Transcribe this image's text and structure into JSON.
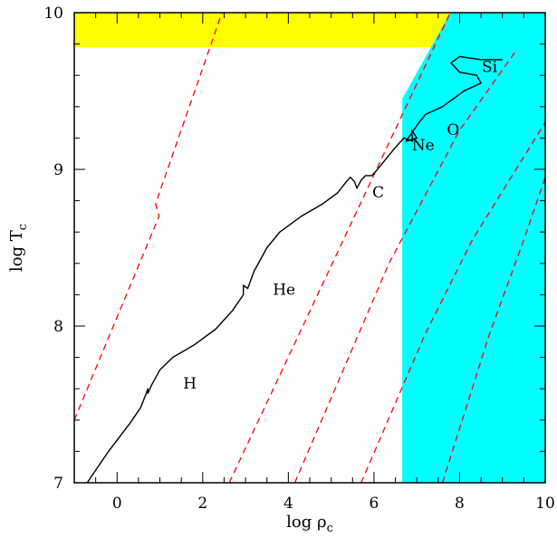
{
  "chart_data": {
    "type": "line",
    "xlabel": "log ρ",
    "xlabel_sub": "c",
    "ylabel": "log T",
    "ylabel_sub": "c",
    "xlim": [
      -1,
      10
    ],
    "ylim": [
      7,
      10
    ],
    "xticks": [
      0,
      2,
      4,
      6,
      8,
      10
    ],
    "yticks": [
      7,
      8,
      9,
      10
    ],
    "colors": {
      "track": "#000000",
      "dashed": "#ff0000",
      "yellow_region": "#ffff00",
      "cyan_region": "#00ffff"
    },
    "regions": [
      {
        "name": "yellow",
        "polygon": [
          [
            -1,
            9.78
          ],
          [
            7.6,
            9.78
          ],
          [
            7.78,
            10
          ],
          [
            -1,
            10
          ]
        ]
      },
      {
        "name": "cyan",
        "polygon": [
          [
            6.66,
            7
          ],
          [
            10,
            7
          ],
          [
            10,
            10
          ],
          [
            7.78,
            10
          ],
          [
            6.66,
            9.45
          ]
        ]
      }
    ],
    "dashed_lines": [
      {
        "points": [
          [
            -1,
            7.4
          ],
          [
            0.98,
            8.7
          ],
          [
            0.9,
            8.78
          ],
          [
            2.45,
            10
          ]
        ]
      },
      {
        "points": [
          [
            2.62,
            7
          ],
          [
            7.78,
            10
          ]
        ]
      },
      {
        "points": [
          [
            4.15,
            7
          ],
          [
            6.35,
            8.4
          ],
          [
            8.0,
            9.25
          ],
          [
            9.3,
            9.75
          ]
        ]
      },
      {
        "points": [
          [
            5.7,
            7
          ],
          [
            7.2,
            7.95
          ],
          [
            8.3,
            8.55
          ],
          [
            10,
            9.3
          ]
        ]
      },
      {
        "points": [
          [
            7.6,
            7
          ],
          [
            8.7,
            7.95
          ],
          [
            9.5,
            8.55
          ],
          [
            10,
            8.95
          ]
        ]
      }
    ],
    "track": [
      [
        -0.7,
        7.0
      ],
      [
        -0.2,
        7.2
      ],
      [
        0.3,
        7.38
      ],
      [
        0.55,
        7.48
      ],
      [
        0.68,
        7.57
      ],
      [
        0.72,
        7.6
      ],
      [
        0.72,
        7.57
      ],
      [
        0.8,
        7.62
      ],
      [
        1.0,
        7.72
      ],
      [
        1.3,
        7.8
      ],
      [
        1.8,
        7.88
      ],
      [
        2.3,
        7.98
      ],
      [
        2.7,
        8.1
      ],
      [
        2.95,
        8.2
      ],
      [
        2.95,
        8.26
      ],
      [
        3.05,
        8.24
      ],
      [
        3.2,
        8.35
      ],
      [
        3.5,
        8.5
      ],
      [
        3.8,
        8.6
      ],
      [
        4.3,
        8.7
      ],
      [
        4.8,
        8.78
      ],
      [
        5.15,
        8.85
      ],
      [
        5.35,
        8.92
      ],
      [
        5.45,
        8.95
      ],
      [
        5.55,
        8.92
      ],
      [
        5.6,
        8.88
      ],
      [
        5.7,
        8.93
      ],
      [
        5.8,
        8.96
      ],
      [
        5.95,
        8.96
      ],
      [
        6.05,
        8.99
      ],
      [
        6.2,
        9.04
      ],
      [
        6.5,
        9.14
      ],
      [
        6.7,
        9.2
      ],
      [
        6.9,
        9.18
      ],
      [
        6.88,
        9.25
      ],
      [
        7.0,
        9.2
      ],
      [
        6.75,
        9.18
      ],
      [
        7.0,
        9.28
      ],
      [
        7.2,
        9.35
      ],
      [
        7.6,
        9.4
      ],
      [
        7.8,
        9.44
      ],
      [
        8.1,
        9.5
      ],
      [
        8.5,
        9.55
      ],
      [
        8.4,
        9.6
      ],
      [
        8.0,
        9.62
      ],
      [
        7.8,
        9.68
      ],
      [
        8.0,
        9.72
      ],
      [
        8.5,
        9.7
      ],
      [
        9.0,
        9.7
      ]
    ],
    "annotations": [
      {
        "text": "H",
        "x": 1.7,
        "y": 7.6
      },
      {
        "text": "He",
        "x": 3.9,
        "y": 8.2
      },
      {
        "text": "C",
        "x": 6.1,
        "y": 8.82
      },
      {
        "text": "Ne",
        "x": 7.15,
        "y": 9.12
      },
      {
        "text": "O",
        "x": 7.85,
        "y": 9.22
      },
      {
        "text": "Si",
        "x": 8.7,
        "y": 9.62
      }
    ]
  }
}
